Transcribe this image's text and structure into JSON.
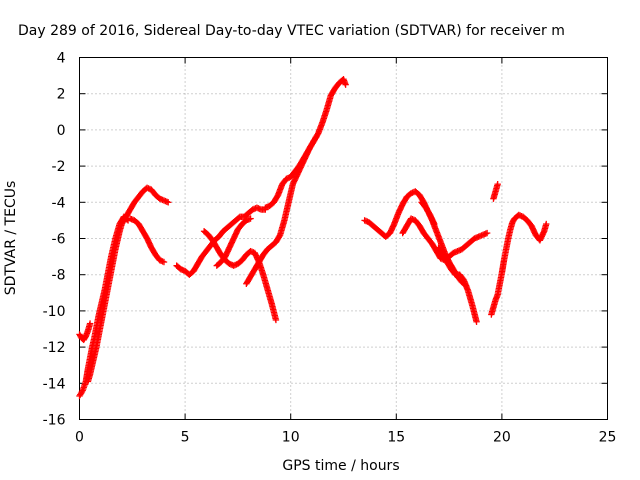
{
  "chart_data": {
    "type": "scatter",
    "title": "Day 289 of 2016, Sidereal Day-to-day VTEC variation (SDTVAR) for receiver m",
    "xlabel": "GPS time / hours",
    "ylabel": "SDTVAR / TECUs",
    "xlim": [
      0,
      25
    ],
    "ylim": [
      -16,
      4
    ],
    "xticks": [
      0,
      5,
      10,
      15,
      20,
      25
    ],
    "yticks": [
      -16,
      -14,
      -12,
      -10,
      -8,
      -6,
      -4,
      -2,
      0,
      2,
      4
    ],
    "grid": true,
    "marker": "plus",
    "color": "#ff0000",
    "segments": [
      {
        "points": [
          [
            0.0,
            -14.7
          ],
          [
            0.15,
            -14.4
          ],
          [
            0.3,
            -13.9
          ],
          [
            0.4,
            -13.2
          ],
          [
            0.5,
            -12.6
          ],
          [
            0.6,
            -12.0
          ],
          [
            0.7,
            -11.5
          ],
          [
            0.8,
            -10.9
          ],
          [
            0.9,
            -10.3
          ],
          [
            1.0,
            -9.8
          ],
          [
            1.1,
            -9.3
          ],
          [
            1.2,
            -8.8
          ],
          [
            1.3,
            -8.2
          ],
          [
            1.4,
            -7.6
          ],
          [
            1.5,
            -7.0
          ],
          [
            1.6,
            -6.5
          ],
          [
            1.7,
            -6.0
          ],
          [
            1.8,
            -5.6
          ],
          [
            1.9,
            -5.2
          ],
          [
            2.0,
            -5.0
          ],
          [
            2.1,
            -4.8
          ],
          [
            2.2,
            -4.9
          ],
          [
            2.3,
            -5.0
          ]
        ]
      },
      {
        "points": [
          [
            0.0,
            -11.3
          ],
          [
            0.1,
            -11.5
          ],
          [
            0.2,
            -11.6
          ],
          [
            0.3,
            -11.4
          ],
          [
            0.4,
            -11.1
          ],
          [
            0.5,
            -10.7
          ]
        ]
      },
      {
        "points": [
          [
            0.4,
            -13.9
          ],
          [
            0.5,
            -13.5
          ],
          [
            0.6,
            -13.0
          ],
          [
            0.7,
            -12.5
          ],
          [
            0.8,
            -12.0
          ],
          [
            0.9,
            -11.4
          ],
          [
            1.0,
            -10.8
          ],
          [
            1.1,
            -10.2
          ],
          [
            1.2,
            -9.6
          ],
          [
            1.3,
            -9.0
          ],
          [
            1.4,
            -8.4
          ],
          [
            1.5,
            -7.8
          ],
          [
            1.6,
            -7.2
          ],
          [
            1.7,
            -6.6
          ],
          [
            1.8,
            -6.1
          ],
          [
            1.9,
            -5.6
          ],
          [
            2.0,
            -5.2
          ],
          [
            2.2,
            -4.8
          ],
          [
            2.4,
            -4.4
          ],
          [
            2.6,
            -4.0
          ],
          [
            2.8,
            -3.7
          ],
          [
            3.0,
            -3.4
          ],
          [
            3.2,
            -3.2
          ],
          [
            3.4,
            -3.3
          ],
          [
            3.6,
            -3.6
          ],
          [
            3.8,
            -3.8
          ],
          [
            4.0,
            -3.9
          ],
          [
            4.2,
            -4.0
          ]
        ]
      },
      {
        "points": [
          [
            2.4,
            -4.9
          ],
          [
            2.6,
            -5.0
          ],
          [
            2.8,
            -5.2
          ],
          [
            3.0,
            -5.6
          ],
          [
            3.2,
            -6.0
          ],
          [
            3.4,
            -6.5
          ],
          [
            3.6,
            -6.9
          ],
          [
            3.8,
            -7.2
          ],
          [
            4.0,
            -7.3
          ]
        ]
      },
      {
        "points": [
          [
            4.6,
            -7.5
          ],
          [
            4.8,
            -7.7
          ],
          [
            5.0,
            -7.8
          ],
          [
            5.2,
            -8.0
          ],
          [
            5.4,
            -7.8
          ],
          [
            5.6,
            -7.4
          ],
          [
            5.8,
            -7.0
          ],
          [
            6.0,
            -6.7
          ],
          [
            6.2,
            -6.4
          ],
          [
            6.4,
            -6.1
          ],
          [
            6.6,
            -5.9
          ],
          [
            6.8,
            -5.6
          ],
          [
            7.0,
            -5.4
          ],
          [
            7.2,
            -5.2
          ],
          [
            7.4,
            -5.0
          ],
          [
            7.6,
            -4.8
          ],
          [
            7.8,
            -4.8
          ],
          [
            8.0,
            -4.6
          ],
          [
            8.2,
            -4.4
          ],
          [
            8.4,
            -4.3
          ],
          [
            8.6,
            -4.4
          ],
          [
            8.8,
            -4.4
          ]
        ]
      },
      {
        "points": [
          [
            5.9,
            -5.6
          ],
          [
            6.1,
            -5.8
          ],
          [
            6.3,
            -6.1
          ],
          [
            6.5,
            -6.5
          ],
          [
            6.7,
            -6.9
          ],
          [
            6.9,
            -7.2
          ],
          [
            7.1,
            -7.4
          ],
          [
            7.3,
            -7.5
          ],
          [
            7.5,
            -7.4
          ],
          [
            7.7,
            -7.2
          ],
          [
            7.9,
            -6.9
          ],
          [
            8.1,
            -6.7
          ],
          [
            8.3,
            -6.8
          ],
          [
            8.5,
            -7.3
          ],
          [
            8.7,
            -8.0
          ],
          [
            8.9,
            -8.8
          ],
          [
            9.1,
            -9.6
          ],
          [
            9.3,
            -10.5
          ]
        ]
      },
      {
        "points": [
          [
            6.5,
            -7.5
          ],
          [
            6.7,
            -7.3
          ],
          [
            6.9,
            -7.0
          ],
          [
            7.1,
            -6.5
          ],
          [
            7.3,
            -6.0
          ],
          [
            7.5,
            -5.5
          ],
          [
            7.7,
            -5.2
          ],
          [
            7.9,
            -5.0
          ],
          [
            8.1,
            -4.9
          ]
        ]
      },
      {
        "points": [
          [
            7.9,
            -8.5
          ],
          [
            8.1,
            -8.1
          ],
          [
            8.3,
            -7.7
          ],
          [
            8.5,
            -7.3
          ],
          [
            8.7,
            -6.9
          ],
          [
            8.9,
            -6.6
          ],
          [
            9.1,
            -6.4
          ],
          [
            9.3,
            -6.2
          ],
          [
            9.5,
            -5.8
          ],
          [
            9.7,
            -5.0
          ],
          [
            9.9,
            -4.0
          ],
          [
            10.1,
            -3.0
          ],
          [
            10.3,
            -2.5
          ],
          [
            10.5,
            -2.0
          ],
          [
            10.7,
            -1.5
          ],
          [
            10.9,
            -1.0
          ],
          [
            11.1,
            -0.6
          ],
          [
            11.3,
            -0.2
          ],
          [
            11.5,
            0.4
          ],
          [
            11.7,
            1.1
          ],
          [
            11.9,
            1.9
          ],
          [
            12.1,
            2.3
          ],
          [
            12.3,
            2.6
          ],
          [
            12.5,
            2.8
          ],
          [
            12.6,
            2.5
          ]
        ]
      },
      {
        "points": [
          [
            8.8,
            -4.3
          ],
          [
            9.0,
            -4.2
          ],
          [
            9.2,
            -4.0
          ],
          [
            9.4,
            -3.6
          ],
          [
            9.6,
            -3.0
          ],
          [
            9.8,
            -2.7
          ],
          [
            10.0,
            -2.6
          ],
          [
            10.2,
            -2.3
          ],
          [
            10.4,
            -2.0
          ],
          [
            10.6,
            -1.6
          ],
          [
            10.8,
            -1.2
          ],
          [
            11.0,
            -0.8
          ],
          [
            11.2,
            -0.4
          ]
        ]
      },
      {
        "points": [
          [
            13.5,
            -5.0
          ],
          [
            13.7,
            -5.1
          ],
          [
            13.9,
            -5.3
          ],
          [
            14.1,
            -5.5
          ],
          [
            14.3,
            -5.7
          ],
          [
            14.5,
            -5.9
          ],
          [
            14.7,
            -5.7
          ],
          [
            14.9,
            -5.2
          ],
          [
            15.1,
            -4.6
          ],
          [
            15.3,
            -4.1
          ],
          [
            15.5,
            -3.7
          ],
          [
            15.7,
            -3.5
          ],
          [
            15.9,
            -3.4
          ],
          [
            16.1,
            -3.6
          ],
          [
            16.3,
            -4.0
          ],
          [
            16.5,
            -4.5
          ],
          [
            16.7,
            -5.0
          ],
          [
            16.9,
            -5.6
          ],
          [
            17.1,
            -6.2
          ],
          [
            17.3,
            -6.8
          ],
          [
            17.5,
            -7.3
          ],
          [
            17.7,
            -7.7
          ],
          [
            17.9,
            -8.1
          ],
          [
            18.1,
            -8.4
          ],
          [
            18.3,
            -8.6
          ]
        ]
      },
      {
        "points": [
          [
            15.3,
            -5.7
          ],
          [
            15.5,
            -5.3
          ],
          [
            15.7,
            -4.9
          ],
          [
            15.9,
            -5.0
          ],
          [
            16.1,
            -5.3
          ],
          [
            16.3,
            -5.7
          ],
          [
            16.5,
            -6.0
          ],
          [
            16.7,
            -6.3
          ],
          [
            16.9,
            -6.7
          ],
          [
            17.1,
            -7.1
          ],
          [
            17.3,
            -7.2
          ],
          [
            17.5,
            -7.0
          ],
          [
            17.7,
            -6.8
          ],
          [
            17.9,
            -6.7
          ],
          [
            18.1,
            -6.6
          ],
          [
            18.3,
            -6.4
          ],
          [
            18.5,
            -6.2
          ],
          [
            18.7,
            -6.0
          ],
          [
            18.9,
            -5.9
          ],
          [
            19.1,
            -5.8
          ],
          [
            19.3,
            -5.7
          ]
        ]
      },
      {
        "points": [
          [
            16.2,
            -4.0
          ],
          [
            16.4,
            -4.3
          ],
          [
            16.6,
            -4.7
          ],
          [
            16.8,
            -5.2
          ]
        ]
      },
      {
        "points": [
          [
            17.0,
            -6.5
          ],
          [
            17.2,
            -6.9
          ],
          [
            17.4,
            -7.3
          ],
          [
            17.6,
            -7.7
          ],
          [
            17.8,
            -8.0
          ],
          [
            18.0,
            -8.0
          ],
          [
            18.2,
            -8.3
          ],
          [
            18.4,
            -8.9
          ],
          [
            18.6,
            -9.7
          ],
          [
            18.8,
            -10.6
          ]
        ]
      },
      {
        "points": [
          [
            19.5,
            -10.2
          ],
          [
            19.6,
            -9.8
          ],
          [
            19.7,
            -9.4
          ],
          [
            19.8,
            -9.1
          ],
          [
            19.9,
            -8.5
          ],
          [
            20.0,
            -7.9
          ],
          [
            20.1,
            -7.2
          ],
          [
            20.2,
            -6.6
          ],
          [
            20.3,
            -6.0
          ],
          [
            20.4,
            -5.5
          ],
          [
            20.5,
            -5.1
          ],
          [
            20.6,
            -4.9
          ],
          [
            20.8,
            -4.7
          ],
          [
            21.0,
            -4.8
          ],
          [
            21.2,
            -5.0
          ],
          [
            21.4,
            -5.3
          ],
          [
            21.6,
            -5.8
          ],
          [
            21.8,
            -6.1
          ],
          [
            22.0,
            -5.6
          ],
          [
            22.1,
            -5.2
          ]
        ]
      },
      {
        "points": [
          [
            19.6,
            -3.8
          ],
          [
            19.7,
            -3.4
          ],
          [
            19.8,
            -3.0
          ]
        ]
      }
    ]
  }
}
